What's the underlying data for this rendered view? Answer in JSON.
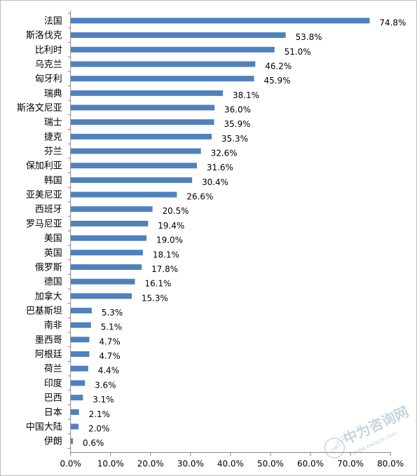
{
  "chart_data": {
    "type": "bar",
    "orientation": "horizontal",
    "categories": [
      "法国",
      "斯洛伐克",
      "比利时",
      "乌克兰",
      "匈牙利",
      "瑞典",
      "斯洛文尼亚",
      "瑞士",
      "捷克",
      "芬兰",
      "保加利亚",
      "韩国",
      "亚美尼亚",
      "西班牙",
      "罗马尼亚",
      "美国",
      "英国",
      "俄罗斯",
      "德国",
      "加拿大",
      "巴基斯坦",
      "南非",
      "墨西哥",
      "阿根廷",
      "荷兰",
      "印度",
      "巴西",
      "日本",
      "中国大陆",
      "伊朗"
    ],
    "values": [
      74.8,
      53.8,
      51.0,
      46.2,
      45.9,
      38.1,
      36.0,
      35.9,
      35.3,
      32.6,
      31.6,
      30.4,
      26.6,
      20.5,
      19.4,
      19.0,
      18.1,
      17.8,
      16.1,
      15.3,
      5.3,
      5.1,
      4.7,
      4.7,
      4.4,
      3.6,
      3.1,
      2.1,
      2.0,
      0.6
    ],
    "value_labels": [
      "74.8%",
      "53.8%",
      "51.0%",
      "46.2%",
      "45.9%",
      "38.1%",
      "36.0%",
      "35.9%",
      "35.3%",
      "32.6%",
      "31.6%",
      "30.4%",
      "26.6%",
      "20.5%",
      "19.4%",
      "19.0%",
      "18.1%",
      "17.8%",
      "16.1%",
      "15.3%",
      "5.3%",
      "5.1%",
      "4.7%",
      "4.7%",
      "4.4%",
      "3.6%",
      "3.1%",
      "2.1%",
      "2.0%",
      "0.6%"
    ],
    "x_ticks": [
      "0.0%",
      "10.0%",
      "20.0%",
      "30.0%",
      "40.0%",
      "50.0%",
      "60.0%",
      "70.0%",
      "80.0%"
    ],
    "xlim": [
      0,
      80
    ],
    "title": "",
    "xlabel": "",
    "ylabel": "",
    "grid": false,
    "legend": "none",
    "bar_color": "#4f81bd"
  },
  "watermark": {
    "text": "中为咨询网",
    "url": "www.zwzyzx.com",
    "badge": "ZWZYZX",
    "color": "#9ab2c4"
  }
}
